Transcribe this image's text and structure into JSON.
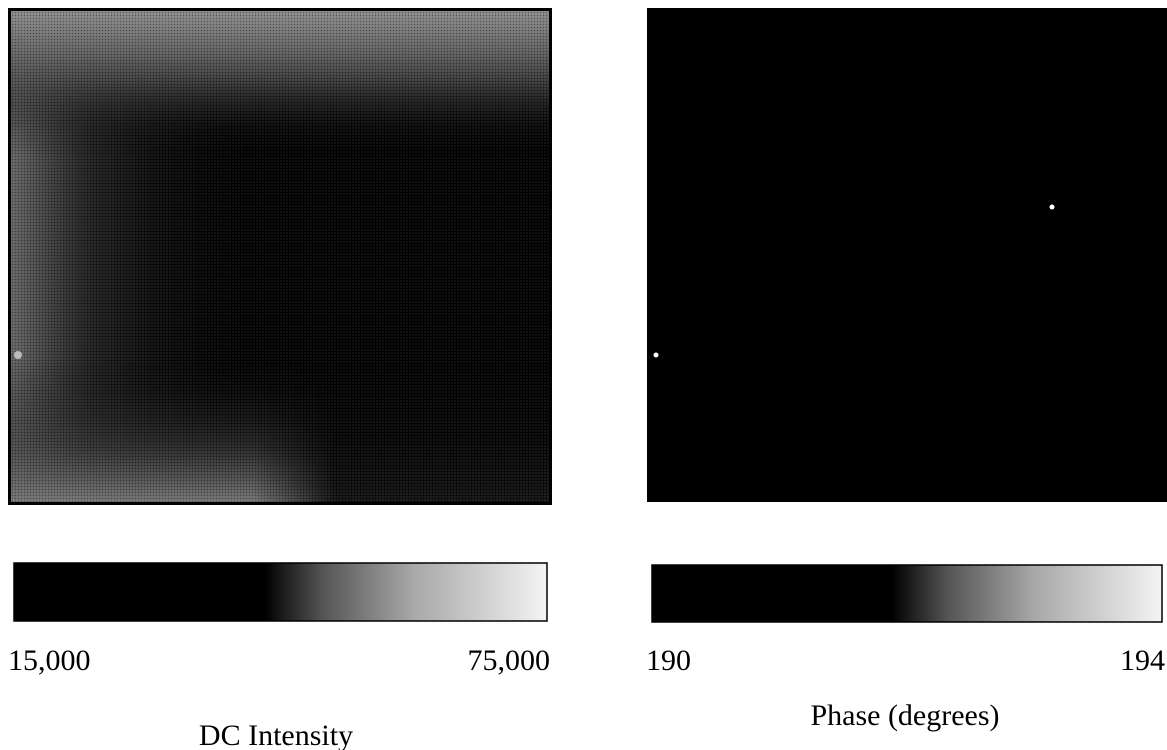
{
  "chart_data": [
    {
      "type": "colormap-image",
      "title": "DC Intensity",
      "clim": [
        15000,
        75000
      ],
      "cticks": [
        {
          "value": 15000,
          "label": "15,000"
        },
        {
          "value": 75000,
          "label": "75,000"
        }
      ]
    },
    {
      "type": "colormap-image",
      "title": "Phase (degrees)",
      "clim": [
        190,
        194
      ],
      "cticks": [
        190,
        194
      ]
    }
  ]
}
